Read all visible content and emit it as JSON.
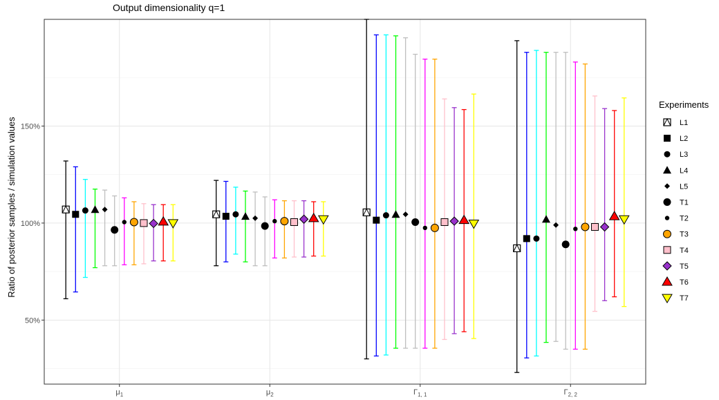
{
  "chart_data": {
    "type": "errorbar",
    "title": "Output dimensionality q=1",
    "xlabel": "",
    "ylabel": "Ratio of posterior samples / simulation values",
    "categories": [
      {
        "base": "μ",
        "sub": "1"
      },
      {
        "base": "μ",
        "sub": "2"
      },
      {
        "base": "Γ",
        "sub": "1, 1"
      },
      {
        "base": "Γ",
        "sub": "2, 2"
      }
    ],
    "ylim": [
      0.17,
      2.05
    ],
    "yticks": [
      0.5,
      1.0,
      1.5
    ],
    "ytick_labels": [
      "50%",
      "100%",
      "150%"
    ],
    "grid": true,
    "legend": {
      "title": "Experiments",
      "placement": "right",
      "entries": [
        {
          "label": "L1",
          "shape": "square-cross",
          "fill": "#ffffff"
        },
        {
          "label": "L2",
          "shape": "square",
          "fill": "#000000"
        },
        {
          "label": "L3",
          "shape": "circle",
          "fill": "#000000"
        },
        {
          "label": "L4",
          "shape": "triangle",
          "fill": "#000000"
        },
        {
          "label": "L5",
          "shape": "diamond",
          "fill": "#000000"
        },
        {
          "label": "T1",
          "shape": "circle-large",
          "fill": "#000000"
        },
        {
          "label": "T2",
          "shape": "circle-small",
          "fill": "#000000"
        },
        {
          "label": "T3",
          "shape": "circle-filled",
          "fill": "#ffa500"
        },
        {
          "label": "T4",
          "shape": "square-filled",
          "fill": "#ffc0cb"
        },
        {
          "label": "T5",
          "shape": "diamond-filled",
          "fill": "#9932cc"
        },
        {
          "label": "T6",
          "shape": "triangle-filled",
          "fill": "#ff0000"
        },
        {
          "label": "T7",
          "shape": "triangle-down-filled",
          "fill": "#ffff00"
        }
      ]
    },
    "series": [
      {
        "name": "L1",
        "color": "#000000",
        "points": [
          {
            "mid": 1.07,
            "lo": 0.61,
            "hi": 1.32
          },
          {
            "mid": 1.045,
            "lo": 0.78,
            "hi": 1.22
          },
          {
            "mid": 1.055,
            "lo": 0.3,
            "hi": 2.05
          },
          {
            "mid": 0.87,
            "lo": 0.23,
            "hi": 1.94
          }
        ]
      },
      {
        "name": "L2",
        "color": "#0000ff",
        "points": [
          {
            "mid": 1.045,
            "lo": 0.645,
            "hi": 1.29
          },
          {
            "mid": 1.035,
            "lo": 0.8,
            "hi": 1.215
          },
          {
            "mid": 1.015,
            "lo": 0.315,
            "hi": 1.97
          },
          {
            "mid": 0.92,
            "lo": 0.305,
            "hi": 1.88
          }
        ]
      },
      {
        "name": "L3",
        "color": "#00ffff",
        "points": [
          {
            "mid": 1.065,
            "lo": 0.72,
            "hi": 1.225
          },
          {
            "mid": 1.045,
            "lo": 0.84,
            "hi": 1.185
          },
          {
            "mid": 1.04,
            "lo": 0.32,
            "hi": 1.97
          },
          {
            "mid": 0.92,
            "lo": 0.315,
            "hi": 1.89
          }
        ]
      },
      {
        "name": "L4",
        "color": "#00ff00",
        "points": [
          {
            "mid": 1.07,
            "lo": 0.77,
            "hi": 1.175
          },
          {
            "mid": 1.035,
            "lo": 0.8,
            "hi": 1.165
          },
          {
            "mid": 1.045,
            "lo": 0.355,
            "hi": 1.965
          },
          {
            "mid": 1.02,
            "lo": 0.385,
            "hi": 1.88
          }
        ]
      },
      {
        "name": "L5",
        "color": "#bebebe",
        "points": [
          {
            "mid": 1.07,
            "lo": 0.78,
            "hi": 1.17
          },
          {
            "mid": 1.025,
            "lo": 0.78,
            "hi": 1.16
          },
          {
            "mid": 1.045,
            "lo": 0.355,
            "hi": 1.955
          },
          {
            "mid": 0.99,
            "lo": 0.39,
            "hi": 1.88
          }
        ]
      },
      {
        "name": "T1",
        "color": "#bebebe",
        "points": [
          {
            "mid": 0.965,
            "lo": 0.78,
            "hi": 1.14
          },
          {
            "mid": 0.985,
            "lo": 0.78,
            "hi": 1.135
          },
          {
            "mid": 1.005,
            "lo": 0.355,
            "hi": 1.87
          },
          {
            "mid": 0.89,
            "lo": 0.35,
            "hi": 1.88
          }
        ]
      },
      {
        "name": "T2",
        "color": "#ff00ff",
        "points": [
          {
            "mid": 1.005,
            "lo": 0.785,
            "hi": 1.13
          },
          {
            "mid": 1.01,
            "lo": 0.82,
            "hi": 1.12
          },
          {
            "mid": 0.975,
            "lo": 0.355,
            "hi": 1.845
          },
          {
            "mid": 0.97,
            "lo": 0.35,
            "hi": 1.83
          }
        ]
      },
      {
        "name": "T3",
        "color": "#ffa500",
        "points": [
          {
            "mid": 1.005,
            "lo": 0.785,
            "hi": 1.11
          },
          {
            "mid": 1.01,
            "lo": 0.82,
            "hi": 1.115
          },
          {
            "mid": 0.975,
            "lo": 0.355,
            "hi": 1.845
          },
          {
            "mid": 0.98,
            "lo": 0.35,
            "hi": 1.82
          }
        ]
      },
      {
        "name": "T4",
        "color": "#ffc0cb",
        "points": [
          {
            "mid": 1.0,
            "lo": 0.79,
            "hi": 1.1
          },
          {
            "mid": 1.005,
            "lo": 0.825,
            "hi": 1.115
          },
          {
            "mid": 1.005,
            "lo": 0.4,
            "hi": 1.64
          },
          {
            "mid": 0.98,
            "lo": 0.545,
            "hi": 1.655
          }
        ]
      },
      {
        "name": "T5",
        "color": "#9932cc",
        "points": [
          {
            "mid": 0.998,
            "lo": 0.805,
            "hi": 1.095
          },
          {
            "mid": 1.02,
            "lo": 0.825,
            "hi": 1.115
          },
          {
            "mid": 1.01,
            "lo": 0.43,
            "hi": 1.595
          },
          {
            "mid": 0.98,
            "lo": 0.6,
            "hi": 1.59
          }
        ]
      },
      {
        "name": "T6",
        "color": "#ff0000",
        "points": [
          {
            "mid": 1.007,
            "lo": 0.805,
            "hi": 1.095
          },
          {
            "mid": 1.025,
            "lo": 0.83,
            "hi": 1.11
          },
          {
            "mid": 1.015,
            "lo": 0.44,
            "hi": 1.585
          },
          {
            "mid": 1.035,
            "lo": 0.62,
            "hi": 1.58
          }
        ]
      },
      {
        "name": "T7",
        "color": "#ffff00",
        "points": [
          {
            "mid": 1.0,
            "lo": 0.805,
            "hi": 1.095
          },
          {
            "mid": 1.02,
            "lo": 0.83,
            "hi": 1.11
          },
          {
            "mid": 0.998,
            "lo": 0.405,
            "hi": 1.665
          },
          {
            "mid": 1.02,
            "lo": 0.57,
            "hi": 1.645
          }
        ]
      }
    ]
  }
}
